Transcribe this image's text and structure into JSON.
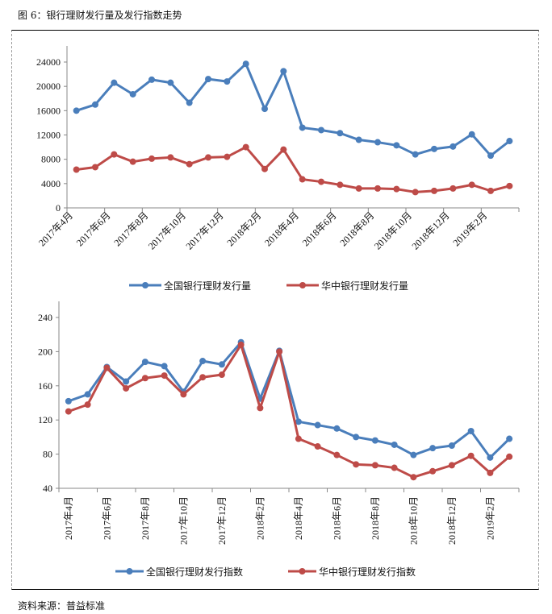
{
  "title": "图 6：银行理财发行量及发行指数走势",
  "source": "资料来源：普益标准",
  "colors": {
    "blue": "#4a7ebb",
    "red": "#be4b48"
  },
  "chart_data": [
    {
      "type": "line",
      "ylim": [
        0,
        24000
      ],
      "yticks": [
        "0",
        "4000",
        "8000",
        "12000",
        "16000",
        "20000",
        "24000"
      ],
      "ytick_values": [
        0,
        4000,
        8000,
        12000,
        16000,
        20000,
        24000
      ],
      "xtick_labels": [
        "2017年4月",
        "2017年6月",
        "2017年8月",
        "2017年10月",
        "2017年12月",
        "2018年2月",
        "2018年4月",
        "2018年6月",
        "2018年8月",
        "2018年10月",
        "2018年12月",
        "2019年2月"
      ],
      "x": [
        "2017-04",
        "2017-05",
        "2017-06",
        "2017-07",
        "2017-08",
        "2017-09",
        "2017-10",
        "2017-11",
        "2017-12",
        "2018-01",
        "2018-02",
        "2018-03",
        "2018-04",
        "2018-05",
        "2018-06",
        "2018-07",
        "2018-08",
        "2018-09",
        "2018-10",
        "2018-11",
        "2018-12",
        "2019-01",
        "2019-02",
        "2019-03"
      ],
      "series": [
        {
          "name": "全国银行理财发行量",
          "color": "#4a7ebb",
          "values": [
            16000,
            17000,
            20600,
            18700,
            21100,
            20600,
            17300,
            21200,
            20800,
            23700,
            16300,
            22500,
            13200,
            12800,
            12300,
            11200,
            10800,
            10300,
            8800,
            9700,
            10100,
            12100,
            8600,
            11000
          ]
        },
        {
          "name": "华中银行理财发行量",
          "color": "#be4b48",
          "values": [
            6300,
            6700,
            8800,
            7600,
            8100,
            8300,
            7200,
            8300,
            8400,
            10000,
            6400,
            9600,
            4700,
            4300,
            3800,
            3200,
            3200,
            3100,
            2600,
            2800,
            3200,
            3800,
            2800,
            3600
          ]
        }
      ],
      "legend": "bottom"
    },
    {
      "type": "line",
      "ylim": [
        40,
        240
      ],
      "yticks": [
        "40",
        "80",
        "120",
        "160",
        "200",
        "240"
      ],
      "ytick_values": [
        40,
        80,
        120,
        160,
        200,
        240
      ],
      "xtick_labels": [
        "2017年4月",
        "2017年6月",
        "2017年8月",
        "2017年10月",
        "2017年12月",
        "2018年2月",
        "2018年4月",
        "2018年6月",
        "2018年8月",
        "2018年10月",
        "2018年12月",
        "2019年2月"
      ],
      "x": [
        "2017-04",
        "2017-05",
        "2017-06",
        "2017-07",
        "2017-08",
        "2017-09",
        "2017-10",
        "2017-11",
        "2017-12",
        "2018-01",
        "2018-02",
        "2018-03",
        "2018-04",
        "2018-05",
        "2018-06",
        "2018-07",
        "2018-08",
        "2018-09",
        "2018-10",
        "2018-11",
        "2018-12",
        "2019-01",
        "2019-02",
        "2019-03"
      ],
      "series": [
        {
          "name": "全国银行理财发行指数",
          "color": "#4a7ebb",
          "values": [
            142,
            150,
            182,
            165,
            188,
            183,
            153,
            189,
            185,
            211,
            145,
            201,
            118,
            114,
            110,
            100,
            96,
            91,
            79,
            87,
            90,
            107,
            76,
            98
          ]
        },
        {
          "name": "华中银行理财发行指数",
          "color": "#be4b48",
          "values": [
            130,
            138,
            181,
            157,
            169,
            172,
            150,
            170,
            173,
            208,
            134,
            200,
            98,
            89,
            79,
            68,
            67,
            64,
            53,
            60,
            67,
            78,
            58,
            77
          ]
        }
      ],
      "legend": "bottom"
    }
  ]
}
